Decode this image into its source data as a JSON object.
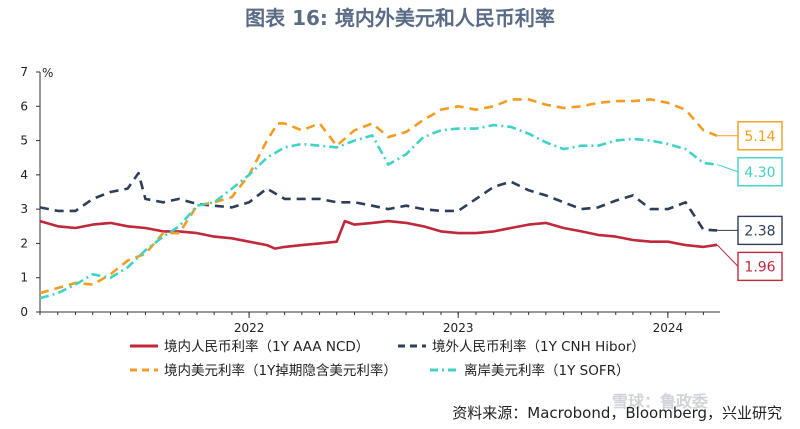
{
  "chart_data": {
    "type": "line",
    "title": "图表 16: 境内外美元和人民币利率",
    "ylabel": "%",
    "ylim": [
      0,
      7
    ],
    "yticks": [
      "0",
      "1",
      "2",
      "3",
      "4",
      "5",
      "6",
      "7"
    ],
    "xlim": [
      "2021-07-01",
      "2024-09-30"
    ],
    "xticks": [
      {
        "label": "2022",
        "date": "2022-07-01"
      },
      {
        "label": "2023",
        "date": "2023-07-01"
      },
      {
        "label": "2024",
        "date": "2024-07-01"
      }
    ],
    "grid": false,
    "legend_position": "bottom",
    "series": [
      {
        "name": "境内人民币利率（1Y AAA NCD）",
        "color": "#c0283c",
        "style": "solid",
        "end_label": "1.96",
        "points": [
          [
            "2021-07-01",
            2.65
          ],
          [
            "2021-08-01",
            2.5
          ],
          [
            "2021-09-01",
            2.45
          ],
          [
            "2021-10-01",
            2.55
          ],
          [
            "2021-11-01",
            2.6
          ],
          [
            "2021-12-01",
            2.5
          ],
          [
            "2022-01-01",
            2.45
          ],
          [
            "2022-02-01",
            2.35
          ],
          [
            "2022-03-01",
            2.35
          ],
          [
            "2022-04-01",
            2.3
          ],
          [
            "2022-05-01",
            2.2
          ],
          [
            "2022-06-01",
            2.15
          ],
          [
            "2022-07-01",
            2.05
          ],
          [
            "2022-08-01",
            1.95
          ],
          [
            "2022-08-15",
            1.85
          ],
          [
            "2022-09-01",
            1.9
          ],
          [
            "2022-10-01",
            1.95
          ],
          [
            "2022-11-01",
            2.0
          ],
          [
            "2022-12-01",
            2.05
          ],
          [
            "2022-12-15",
            2.65
          ],
          [
            "2023-01-01",
            2.55
          ],
          [
            "2023-02-01",
            2.6
          ],
          [
            "2023-03-01",
            2.65
          ],
          [
            "2023-04-01",
            2.6
          ],
          [
            "2023-05-01",
            2.5
          ],
          [
            "2023-06-01",
            2.35
          ],
          [
            "2023-07-01",
            2.3
          ],
          [
            "2023-08-01",
            2.3
          ],
          [
            "2023-09-01",
            2.35
          ],
          [
            "2023-10-01",
            2.45
          ],
          [
            "2023-11-01",
            2.55
          ],
          [
            "2023-12-01",
            2.6
          ],
          [
            "2024-01-01",
            2.45
          ],
          [
            "2024-02-01",
            2.35
          ],
          [
            "2024-03-01",
            2.25
          ],
          [
            "2024-04-01",
            2.2
          ],
          [
            "2024-05-01",
            2.1
          ],
          [
            "2024-06-01",
            2.05
          ],
          [
            "2024-07-01",
            2.05
          ],
          [
            "2024-08-01",
            1.95
          ],
          [
            "2024-09-01",
            1.9
          ],
          [
            "2024-09-25",
            1.96
          ]
        ]
      },
      {
        "name": "境外人民币利率（1Y CNH Hibor）",
        "color": "#2c3e5a",
        "style": "dashed",
        "end_label": "2.38",
        "points": [
          [
            "2021-07-01",
            3.05
          ],
          [
            "2021-08-01",
            2.95
          ],
          [
            "2021-09-01",
            2.95
          ],
          [
            "2021-10-01",
            3.3
          ],
          [
            "2021-11-01",
            3.5
          ],
          [
            "2021-12-01",
            3.6
          ],
          [
            "2021-12-20",
            4.05
          ],
          [
            "2022-01-01",
            3.3
          ],
          [
            "2022-02-01",
            3.2
          ],
          [
            "2022-03-01",
            3.3
          ],
          [
            "2022-04-01",
            3.15
          ],
          [
            "2022-05-01",
            3.1
          ],
          [
            "2022-06-01",
            3.05
          ],
          [
            "2022-07-01",
            3.2
          ],
          [
            "2022-08-01",
            3.6
          ],
          [
            "2022-09-01",
            3.3
          ],
          [
            "2022-10-01",
            3.3
          ],
          [
            "2022-11-01",
            3.3
          ],
          [
            "2022-12-01",
            3.2
          ],
          [
            "2023-01-01",
            3.2
          ],
          [
            "2023-02-01",
            3.1
          ],
          [
            "2023-03-01",
            3.0
          ],
          [
            "2023-04-01",
            3.1
          ],
          [
            "2023-05-01",
            3.0
          ],
          [
            "2023-06-01",
            2.95
          ],
          [
            "2023-07-01",
            2.95
          ],
          [
            "2023-08-01",
            3.3
          ],
          [
            "2023-09-01",
            3.65
          ],
          [
            "2023-10-01",
            3.8
          ],
          [
            "2023-11-01",
            3.55
          ],
          [
            "2023-12-01",
            3.4
          ],
          [
            "2024-01-01",
            3.2
          ],
          [
            "2024-02-01",
            3.0
          ],
          [
            "2024-03-01",
            3.05
          ],
          [
            "2024-04-01",
            3.25
          ],
          [
            "2024-05-01",
            3.4
          ],
          [
            "2024-06-01",
            3.0
          ],
          [
            "2024-07-01",
            3.0
          ],
          [
            "2024-08-01",
            3.2
          ],
          [
            "2024-09-01",
            2.4
          ],
          [
            "2024-09-25",
            2.38
          ]
        ]
      },
      {
        "name": "境内美元利率（1Y掉期隐含美元利率）",
        "color": "#f39c1f",
        "style": "dashed",
        "end_label": "5.14",
        "points": [
          [
            "2021-07-01",
            0.55
          ],
          [
            "2021-08-01",
            0.7
          ],
          [
            "2021-09-01",
            0.85
          ],
          [
            "2021-10-01",
            0.8
          ],
          [
            "2021-11-01",
            1.1
          ],
          [
            "2021-12-01",
            1.5
          ],
          [
            "2022-01-01",
            1.7
          ],
          [
            "2022-02-01",
            2.3
          ],
          [
            "2022-03-01",
            2.3
          ],
          [
            "2022-04-01",
            3.1
          ],
          [
            "2022-05-01",
            3.2
          ],
          [
            "2022-06-01",
            3.35
          ],
          [
            "2022-07-01",
            4.0
          ],
          [
            "2022-08-01",
            5.0
          ],
          [
            "2022-08-20",
            5.5
          ],
          [
            "2022-09-01",
            5.5
          ],
          [
            "2022-10-01",
            5.3
          ],
          [
            "2022-11-01",
            5.5
          ],
          [
            "2022-12-01",
            4.85
          ],
          [
            "2023-01-01",
            5.3
          ],
          [
            "2023-02-01",
            5.5
          ],
          [
            "2023-03-01",
            5.1
          ],
          [
            "2023-04-01",
            5.25
          ],
          [
            "2023-05-01",
            5.6
          ],
          [
            "2023-06-01",
            5.9
          ],
          [
            "2023-07-01",
            6.0
          ],
          [
            "2023-08-01",
            5.9
          ],
          [
            "2023-09-01",
            6.0
          ],
          [
            "2023-10-01",
            6.2
          ],
          [
            "2023-11-01",
            6.2
          ],
          [
            "2023-12-01",
            6.05
          ],
          [
            "2024-01-01",
            5.95
          ],
          [
            "2024-02-01",
            6.0
          ],
          [
            "2024-03-01",
            6.1
          ],
          [
            "2024-04-01",
            6.15
          ],
          [
            "2024-05-01",
            6.15
          ],
          [
            "2024-06-01",
            6.2
          ],
          [
            "2024-07-01",
            6.1
          ],
          [
            "2024-08-01",
            5.9
          ],
          [
            "2024-09-01",
            5.3
          ],
          [
            "2024-09-25",
            5.14
          ]
        ]
      },
      {
        "name": "离岸美元利率（1Y SOFR）",
        "color": "#3fd3c6",
        "style": "dashdot",
        "end_label": "4.30",
        "points": [
          [
            "2021-07-01",
            0.4
          ],
          [
            "2021-08-01",
            0.55
          ],
          [
            "2021-09-01",
            0.8
          ],
          [
            "2021-10-01",
            1.1
          ],
          [
            "2021-11-01",
            1.0
          ],
          [
            "2021-12-01",
            1.3
          ],
          [
            "2022-01-01",
            1.8
          ],
          [
            "2022-02-01",
            2.2
          ],
          [
            "2022-03-01",
            2.5
          ],
          [
            "2022-04-01",
            3.1
          ],
          [
            "2022-05-01",
            3.2
          ],
          [
            "2022-06-01",
            3.6
          ],
          [
            "2022-07-01",
            4.0
          ],
          [
            "2022-08-01",
            4.5
          ],
          [
            "2022-09-01",
            4.8
          ],
          [
            "2022-10-01",
            4.9
          ],
          [
            "2022-11-01",
            4.85
          ],
          [
            "2022-12-01",
            4.8
          ],
          [
            "2023-01-01",
            5.0
          ],
          [
            "2023-02-01",
            5.15
          ],
          [
            "2023-03-01",
            4.3
          ],
          [
            "2023-04-01",
            4.6
          ],
          [
            "2023-05-01",
            5.1
          ],
          [
            "2023-06-01",
            5.3
          ],
          [
            "2023-07-01",
            5.35
          ],
          [
            "2023-08-01",
            5.35
          ],
          [
            "2023-09-01",
            5.45
          ],
          [
            "2023-10-01",
            5.4
          ],
          [
            "2023-11-01",
            5.2
          ],
          [
            "2023-12-01",
            4.95
          ],
          [
            "2024-01-01",
            4.75
          ],
          [
            "2024-02-01",
            4.85
          ],
          [
            "2024-03-01",
            4.85
          ],
          [
            "2024-04-01",
            5.0
          ],
          [
            "2024-05-01",
            5.05
          ],
          [
            "2024-06-01",
            5.0
          ],
          [
            "2024-07-01",
            4.9
          ],
          [
            "2024-08-01",
            4.75
          ],
          [
            "2024-09-01",
            4.35
          ],
          [
            "2024-09-25",
            4.3
          ]
        ]
      }
    ],
    "source": "资料来源：Macrobond，Bloomberg，兴业研究",
    "watermark": "雪球：鲁政委"
  }
}
